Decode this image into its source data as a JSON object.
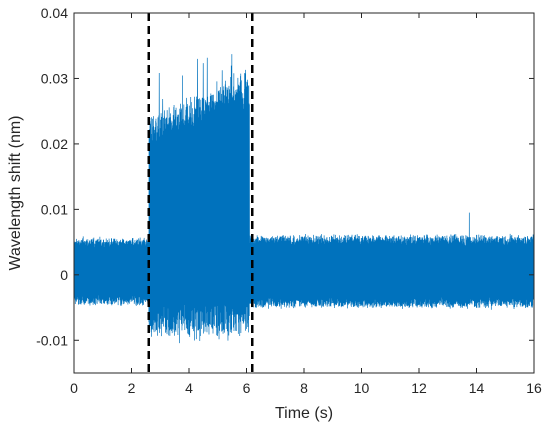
{
  "chart_data": {
    "type": "line",
    "title": "",
    "xlabel": "Time (s)",
    "ylabel": "Wavelength shift (nm)",
    "xlim": [
      0,
      16
    ],
    "ylim": [
      -0.015,
      0.04
    ],
    "x_ticks": [
      0,
      2,
      4,
      6,
      8,
      10,
      12,
      14,
      16
    ],
    "x_tick_labels": [
      "0",
      "2",
      "4",
      "6",
      "8",
      "10",
      "12",
      "14",
      "16"
    ],
    "y_ticks": [
      -0.01,
      0,
      0.01,
      0.02,
      0.03,
      0.04
    ],
    "y_tick_labels": [
      "-0.01",
      "0",
      "0.01",
      "0.02",
      "0.03",
      "0.04"
    ],
    "grid": false,
    "series": [
      {
        "color": "#0072BD",
        "segments": [
          {
            "x_range": [
              0,
              2.6
            ],
            "mean": 0.0005,
            "upper": 0.0055,
            "lower": -0.0045
          },
          {
            "x_range": [
              2.6,
              6.1
            ],
            "mean": 0.011,
            "upper_start": 0.024,
            "upper_end": 0.031,
            "upper_max": 0.034,
            "lower": -0.009
          },
          {
            "x_range": [
              6.1,
              16
            ],
            "mean": 0.0005,
            "upper": 0.006,
            "lower": -0.005
          }
        ],
        "notable_points": [
          {
            "x": 13.75,
            "y": 0.0095
          }
        ]
      }
    ],
    "vertical_lines": [
      {
        "x": 2.6,
        "style": "dashed",
        "color": "#000000"
      },
      {
        "x": 6.2,
        "style": "dashed",
        "color": "#000000"
      }
    ]
  }
}
